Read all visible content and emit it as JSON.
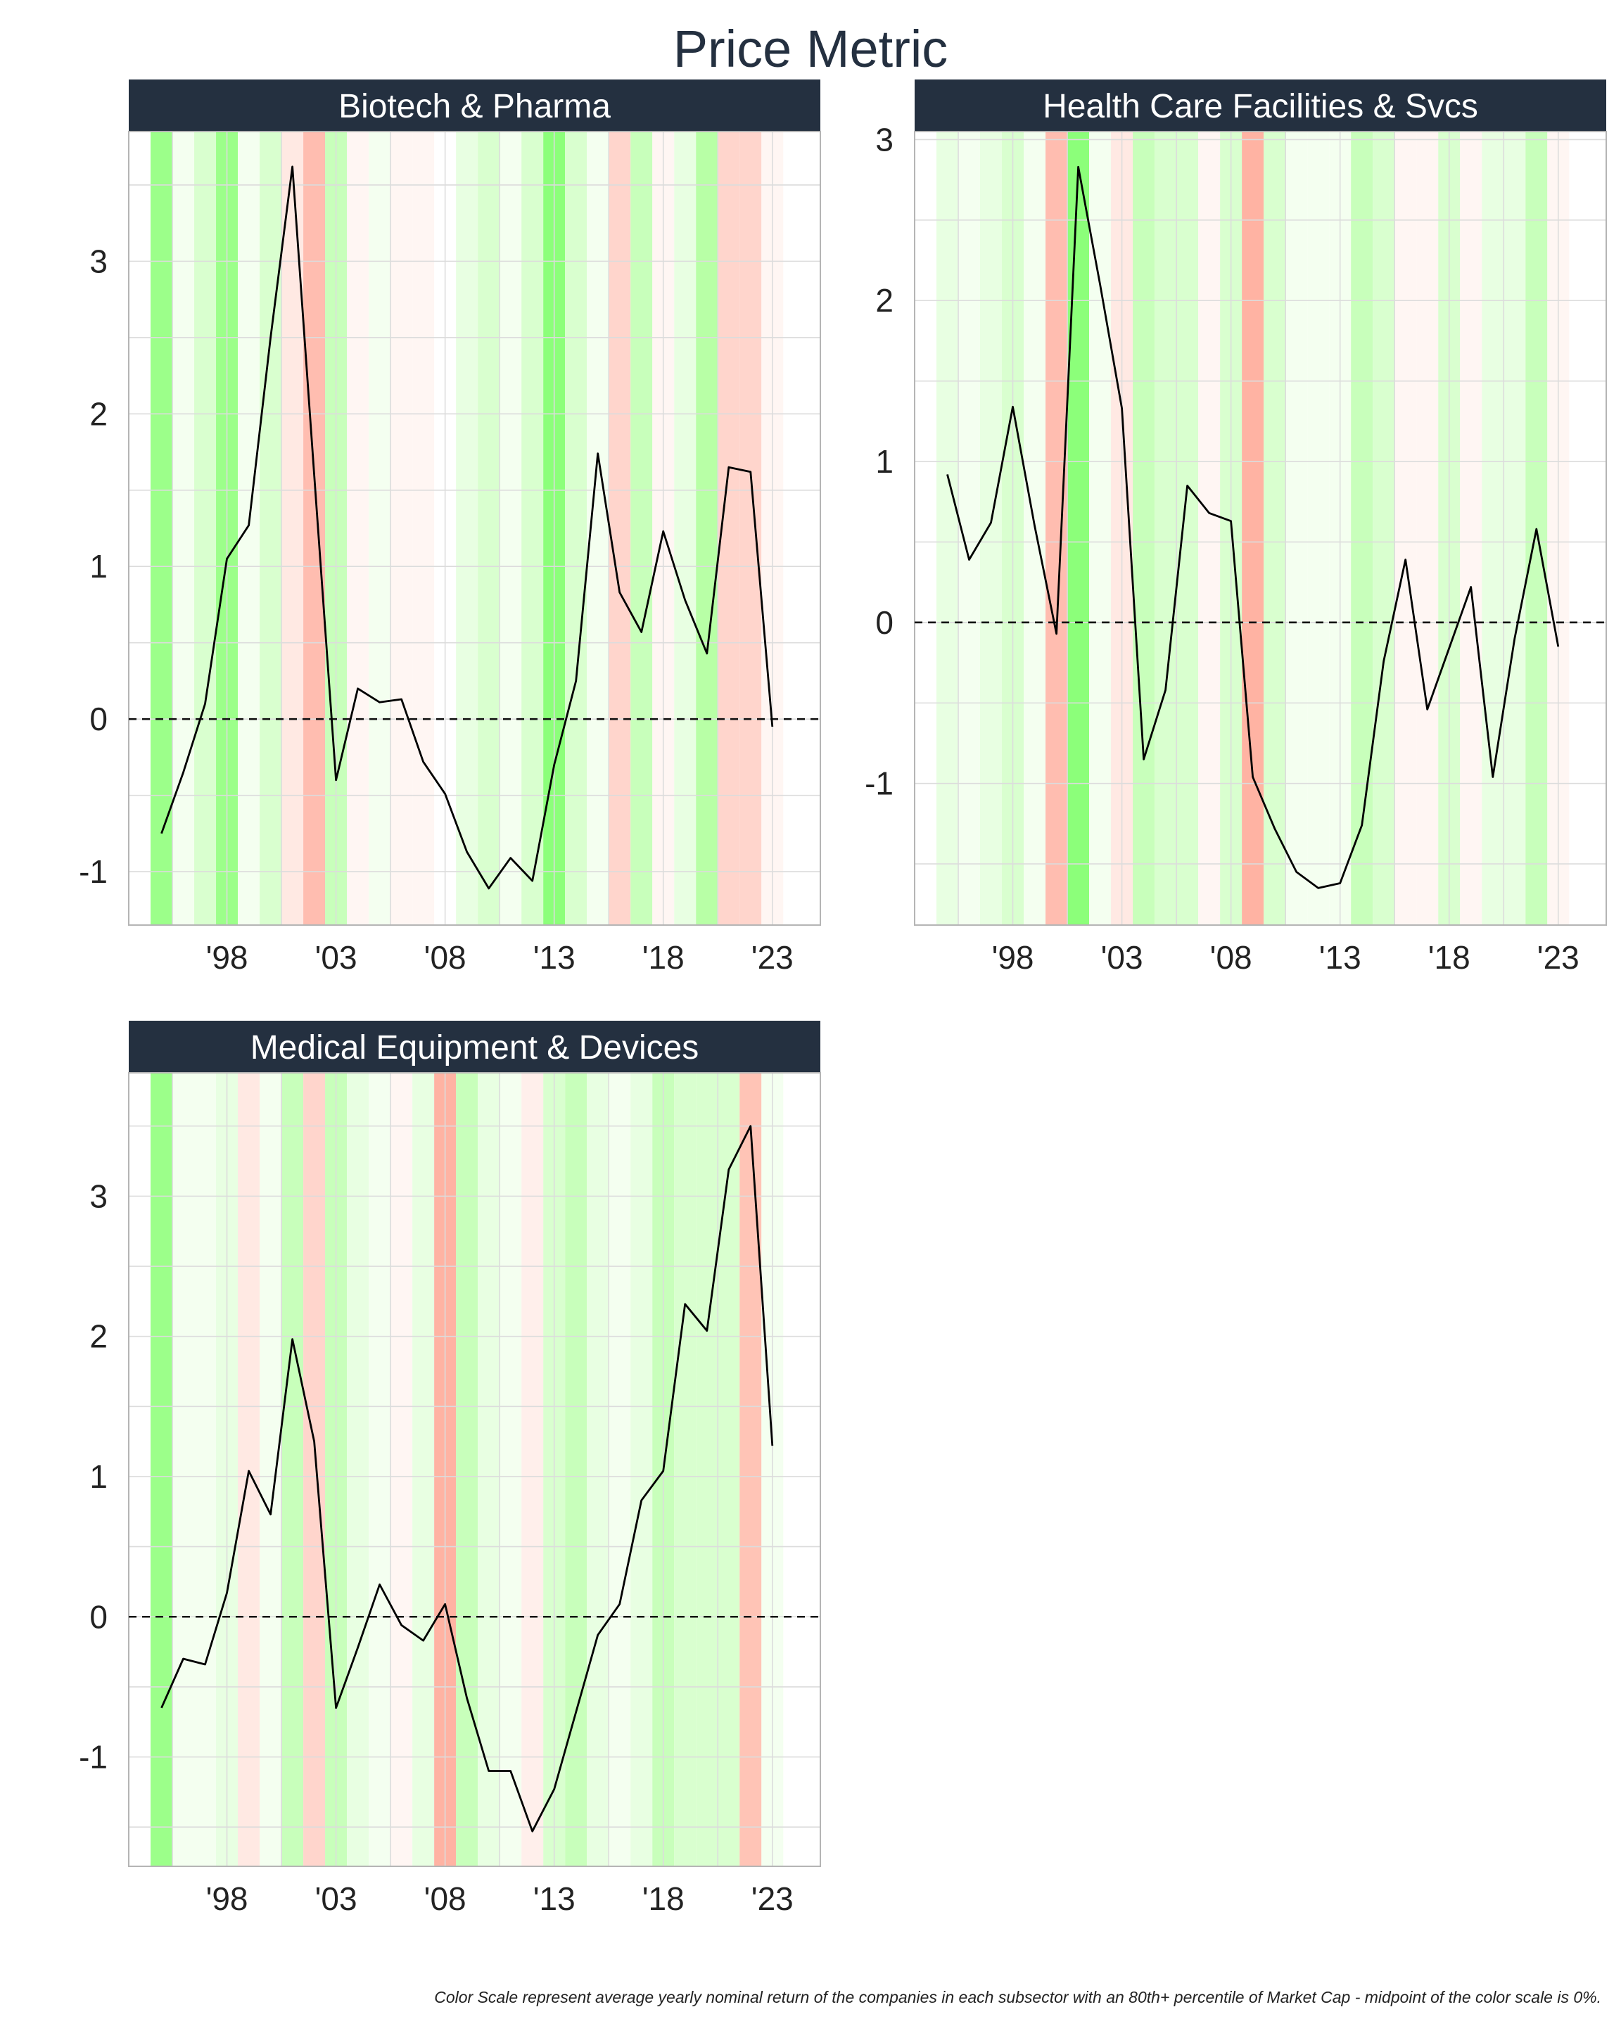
{
  "title": "Price Metric",
  "footnote": "Color Scale represent average yearly nominal return of the companies in each subsector with an 80th+ percentile of Market Cap - midpoint of the color scale is 0%.",
  "chart_data": [
    {
      "type": "line",
      "title": "Biotech & Pharma",
      "x_tick_labels": [
        "'98",
        "'03",
        "'08",
        "'13",
        "'18",
        "'23"
      ],
      "x_ticks": [
        1998,
        2003,
        2008,
        2013,
        2018,
        2023
      ],
      "xlim": [
        1993.5,
        2025.2
      ],
      "ylim": [
        -1.35,
        3.85
      ],
      "y_ticks": [
        -1,
        0,
        1,
        2,
        3
      ],
      "y_tick_labels": [
        "-1",
        "0",
        "1",
        "2",
        "3"
      ],
      "grid": true,
      "reference_line": 0,
      "x": [
        1995,
        1996,
        1997,
        1998,
        1999,
        2000,
        2001,
        2002,
        2003,
        2004,
        2005,
        2006,
        2007,
        2008,
        2009,
        2010,
        2011,
        2012,
        2013,
        2014,
        2015,
        2016,
        2017,
        2018,
        2019,
        2020,
        2021,
        2022,
        2023
      ],
      "values": [
        -0.75,
        -0.35,
        0.1,
        1.05,
        1.27,
        2.5,
        3.62,
        1.6,
        -0.4,
        0.2,
        0.11,
        0.13,
        -0.28,
        -0.49,
        -0.87,
        -1.11,
        -0.91,
        -1.06,
        -0.3,
        0.25,
        1.74,
        0.83,
        0.57,
        1.23,
        0.78,
        0.43,
        1.65,
        1.62,
        -0.05
      ],
      "background_colors": [
        "#9cff8a",
        "#f4fff0",
        "#d9ffcf",
        "#9cff8a",
        "#f4fff0",
        "#d9ffcf",
        "#ffe9e3",
        "#ffbdb0",
        "#c8ffbb",
        "#fff6f3",
        "#f4fff0",
        "#fff6f3",
        "#fff6f3",
        "#ffffff",
        "#e8ffe2",
        "#d9ffcf",
        "#f4fff0",
        "#d9ffcf",
        "#8cff7a",
        "#d9ffcf",
        "#f4fff0",
        "#ffd5cc",
        "#c8ffbb",
        "#fff6f3",
        "#e8ffe2",
        "#b8ffa6",
        "#ffd5cc",
        "#ffd5cc",
        "#fff6f3"
      ]
    },
    {
      "type": "line",
      "title": "Health Care Facilities & Svcs",
      "x_tick_labels": [
        "'98",
        "'03",
        "'08",
        "'13",
        "'18",
        "'23"
      ],
      "x_ticks": [
        1998,
        2003,
        2008,
        2013,
        2018,
        2023
      ],
      "xlim": [
        1993.5,
        2025.2
      ],
      "ylim": [
        -1.88,
        3.05
      ],
      "y_ticks": [
        -1,
        0,
        1,
        2,
        3
      ],
      "y_tick_labels": [
        "-1",
        "0",
        "1",
        "2",
        "3"
      ],
      "grid": true,
      "reference_line": 0,
      "x": [
        1995,
        1996,
        1997,
        1998,
        1999,
        2000,
        2001,
        2002,
        2003,
        2004,
        2005,
        2006,
        2007,
        2008,
        2009,
        2010,
        2011,
        2012,
        2013,
        2014,
        2015,
        2016,
        2017,
        2018,
        2019,
        2020,
        2021,
        2022,
        2023
      ],
      "values": [
        0.92,
        0.39,
        0.62,
        1.34,
        0.6,
        -0.07,
        2.83,
        2.1,
        1.33,
        -0.85,
        -0.42,
        0.85,
        0.68,
        0.63,
        -0.96,
        -1.28,
        -1.55,
        -1.65,
        -1.62,
        -1.26,
        -0.24,
        0.39,
        -0.54,
        -0.16,
        0.22,
        -0.96,
        -0.1,
        0.58,
        -0.15
      ],
      "background_colors": [
        "#e8ffe2",
        "#f4fff0",
        "#e8ffe2",
        "#d9ffcf",
        "#f4fff0",
        "#ffbdb0",
        "#8cff7a",
        "#f4fff0",
        "#ffe9e3",
        "#c8ffbb",
        "#d9ffcf",
        "#d9ffcf",
        "#fff6f3",
        "#d9ffcf",
        "#ffb3a3",
        "#d9ffcf",
        "#f4fff0",
        "#f4fff0",
        "#f4fff0",
        "#c8ffbb",
        "#d9ffcf",
        "#fff6f3",
        "#fff6f3",
        "#d9ffcf",
        "#fff6f3",
        "#e8ffe2",
        "#e8ffe2",
        "#c8ffbb",
        "#fff6f3"
      ]
    },
    {
      "type": "line",
      "title": "Medical Equipment & Devices",
      "x_tick_labels": [
        "'98",
        "'03",
        "'08",
        "'13",
        "'18",
        "'23"
      ],
      "x_ticks": [
        1998,
        2003,
        2008,
        2013,
        2018,
        2023
      ],
      "xlim": [
        1993.5,
        2025.2
      ],
      "ylim": [
        -1.78,
        3.88
      ],
      "y_ticks": [
        -1,
        0,
        1,
        2,
        3
      ],
      "y_tick_labels": [
        "-1",
        "0",
        "1",
        "2",
        "3"
      ],
      "grid": true,
      "reference_line": 0,
      "x": [
        1995,
        1996,
        1997,
        1998,
        1999,
        2000,
        2001,
        2002,
        2003,
        2004,
        2005,
        2006,
        2007,
        2008,
        2009,
        2010,
        2011,
        2012,
        2013,
        2014,
        2015,
        2016,
        2017,
        2018,
        2019,
        2020,
        2021,
        2022,
        2023
      ],
      "values": [
        -0.65,
        -0.3,
        -0.34,
        0.17,
        1.04,
        0.73,
        1.98,
        1.25,
        -0.65,
        -0.22,
        0.23,
        -0.06,
        -0.17,
        0.09,
        -0.58,
        -1.1,
        -1.1,
        -1.53,
        -1.23,
        -0.68,
        -0.13,
        0.09,
        0.83,
        1.04,
        2.23,
        2.04,
        3.19,
        3.5,
        1.22
      ],
      "background_colors": [
        "#9cff8a",
        "#f4fff0",
        "#f4fff0",
        "#e8ffe2",
        "#ffe9e3",
        "#f4fff0",
        "#c8ffbb",
        "#ffd5cc",
        "#c8ffbb",
        "#e8ffe2",
        "#f4fff0",
        "#fff6f3",
        "#e8ffe2",
        "#ffb3a3",
        "#c8ffbb",
        "#e8ffe2",
        "#f4fff0",
        "#ffefeb",
        "#d9ffcf",
        "#c8ffbb",
        "#e8ffe2",
        "#f4fff0",
        "#e8ffe2",
        "#c8ffbb",
        "#d9ffcf",
        "#d9ffcf",
        "#d9ffcf",
        "#ffc4b6",
        "#f4fff0"
      ]
    }
  ]
}
